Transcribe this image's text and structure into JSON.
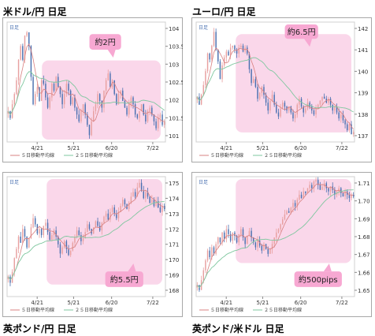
{
  "charts": [
    {
      "id": "usdjpy",
      "title": "米ドル/円 日足",
      "corner_label": "日足",
      "y_ticks": [
        "104",
        "103.5",
        "103",
        "102.5",
        "102",
        "101.5",
        "101"
      ],
      "x_ticks": [
        "4/21",
        "5/21",
        "6/20",
        "7/22"
      ],
      "legend": [
        "５日移動平均線",
        "２５日移動平均線"
      ],
      "annotation": "約2円",
      "colors": {
        "up": "#e8a0a0",
        "down": "#4a70b0",
        "ma5": "#d88080",
        "ma25": "#7fc79f",
        "highlight": "#f9d0e6",
        "callout": "#f7a8d2"
      }
    },
    {
      "id": "eurjpy",
      "title": "ユーロ/円 日足",
      "corner_label": "日足",
      "y_ticks": [
        "142",
        "141",
        "140",
        "139",
        "138",
        "137"
      ],
      "x_ticks": [
        "4/21",
        "5/21",
        "6/20",
        "7/22"
      ],
      "legend": [
        "５日移動平均線",
        "２５日移動平均線"
      ],
      "annotation": "約6.5円",
      "colors": {
        "up": "#e8a0a0",
        "down": "#4a70b0",
        "ma5": "#d88080",
        "ma25": "#7fc79f",
        "highlight": "#f9d0e6",
        "callout": "#f7a8d2"
      }
    },
    {
      "id": "gbpjpy",
      "title": "英ポンド/円 日足",
      "corner_label": "日足",
      "y_ticks": [
        "175",
        "174",
        "173",
        "172",
        "171",
        "170",
        "169",
        "168"
      ],
      "x_ticks": [
        "4/21",
        "5/21",
        "6/20",
        "7/22"
      ],
      "legend": [
        "５日移動平均線",
        "２５日移動平均線"
      ],
      "annotation": "約5.5円",
      "colors": {
        "up": "#e8a0a0",
        "down": "#4a70b0",
        "ma5": "#d88080",
        "ma25": "#7fc79f",
        "highlight": "#f9d0e6",
        "callout": "#f7a8d2"
      }
    },
    {
      "id": "gbpusd",
      "title": "英ポンド/米ドル 日足",
      "corner_label": "日足",
      "y_ticks": [
        "1.71",
        "1.70",
        "1.69",
        "1.68",
        "1.67",
        "1.66",
        "1.65"
      ],
      "x_ticks": [
        "4/21",
        "5/21",
        "6/20",
        "7/22"
      ],
      "legend": [
        "５日移動平均線",
        "２５日移動平均線"
      ],
      "annotation": "約500pips",
      "colors": {
        "up": "#e8a0a0",
        "down": "#4a70b0",
        "ma5": "#d88080",
        "ma25": "#7fc79f",
        "highlight": "#f9d0e6",
        "callout": "#f7a8d2"
      }
    }
  ],
  "chart_data": [
    {
      "type": "candlestick",
      "x_ticks": [
        "4/21",
        "5/21",
        "6/20",
        "7/22"
      ],
      "ylim": [
        100.8,
        104.3
      ],
      "close": [
        101.7,
        101.5,
        101.9,
        102.2,
        102.6,
        103.2,
        103.6,
        103.2,
        103.9,
        104.0,
        103.6,
        102.7,
        101.9,
        102.2,
        102.4,
        102.0,
        102.6,
        102.5,
        102.1,
        101.8,
        102.1,
        102.5,
        102.3,
        102.7,
        102.4,
        102.2,
        101.9,
        102.2,
        102.5,
        102.3,
        101.9,
        102.1,
        101.8,
        101.6,
        101.4,
        101.7,
        101.9,
        101.6,
        101.3,
        101.0,
        101.4,
        101.7,
        101.9,
        102.2,
        102.0,
        101.8,
        102.3,
        102.6,
        102.8,
        102.4,
        102.6,
        102.2,
        101.9,
        102.2,
        102.3,
        102.0,
        101.8,
        101.6,
        101.9,
        102.1,
        101.9,
        101.6,
        101.5,
        101.7,
        101.9,
        101.6,
        101.4,
        101.7,
        101.8,
        101.6,
        101.4,
        101.2,
        101.5,
        101.6,
        101.3,
        101.4
      ]
    },
    {
      "type": "candlestick",
      "x_ticks": [
        "4/21",
        "5/21",
        "6/20",
        "7/22"
      ],
      "ylim": [
        136.7,
        142.8
      ],
      "close": [
        139.0,
        138.6,
        139.1,
        139.6,
        140.3,
        141.2,
        140.9,
        141.6,
        142.3,
        141.4,
        140.8,
        139.9,
        140.6,
        141.0,
        141.3,
        141.1,
        141.5,
        141.6,
        141.4,
        141.2,
        141.5,
        141.6,
        141.3,
        141.5,
        141.2,
        140.4,
        139.7,
        139.9,
        139.5,
        138.9,
        139.2,
        139.5,
        139.1,
        138.7,
        138.3,
        138.8,
        139.1,
        138.6,
        138.2,
        138.0,
        138.4,
        138.7,
        138.5,
        138.3,
        138.5,
        138.2,
        137.9,
        138.1,
        138.6,
        138.9,
        138.5,
        138.2,
        138.4,
        138.7,
        138.5,
        138.3,
        138.1,
        138.4,
        138.6,
        138.8,
        139.0,
        138.9,
        138.7,
        138.9,
        138.6,
        138.3,
        138.5,
        138.2,
        137.9,
        138.1,
        137.8,
        137.6,
        137.3,
        137.6,
        137.1,
        137.2
      ]
    },
    {
      "type": "candlestick",
      "x_ticks": [
        "4/21",
        "5/21",
        "6/20",
        "7/22"
      ],
      "ylim": [
        167.7,
        175.5
      ],
      "close": [
        169.0,
        168.6,
        169.3,
        170.2,
        170.8,
        171.6,
        171.2,
        172.1,
        171.6,
        170.9,
        171.5,
        172.2,
        172.8,
        172.4,
        171.8,
        172.1,
        171.7,
        172.3,
        172.5,
        171.9,
        171.4,
        171.7,
        172.0,
        171.6,
        171.1,
        170.5,
        170.9,
        171.3,
        170.8,
        170.4,
        170.7,
        171.2,
        171.6,
        172.0,
        171.7,
        171.3,
        171.5,
        171.9,
        172.4,
        172.1,
        171.8,
        172.2,
        172.6,
        172.3,
        172.0,
        172.5,
        172.9,
        173.1,
        172.7,
        173.2,
        173.5,
        173.1,
        172.8,
        173.2,
        173.6,
        174.0,
        173.7,
        173.4,
        173.8,
        174.2,
        174.5,
        174.2,
        174.8,
        175.1,
        174.6,
        174.1,
        174.5,
        174.2,
        173.8,
        174.0,
        173.6,
        173.9,
        173.5,
        173.2,
        173.6,
        173.4
      ]
    },
    {
      "type": "candlestick",
      "x_ticks": [
        "4/21",
        "5/21",
        "6/20",
        "7/22"
      ],
      "ylim": [
        1.645,
        1.718
      ],
      "close": [
        1.652,
        1.649,
        1.655,
        1.661,
        1.667,
        1.673,
        1.669,
        1.675,
        1.671,
        1.677,
        1.681,
        1.678,
        1.684,
        1.68,
        1.686,
        1.683,
        1.679,
        1.684,
        1.682,
        1.678,
        1.683,
        1.686,
        1.681,
        1.677,
        1.682,
        1.685,
        1.681,
        1.678,
        1.675,
        1.679,
        1.676,
        1.673,
        1.677,
        1.674,
        1.671,
        1.674,
        1.677,
        1.681,
        1.684,
        1.686,
        1.689,
        1.692,
        1.695,
        1.697,
        1.696,
        1.699,
        1.702,
        1.7,
        1.704,
        1.707,
        1.705,
        1.709,
        1.708,
        1.711,
        1.713,
        1.711,
        1.715,
        1.716,
        1.713,
        1.71,
        1.712,
        1.714,
        1.711,
        1.709,
        1.712,
        1.71,
        1.707,
        1.709,
        1.711,
        1.708,
        1.706,
        1.709,
        1.707,
        1.705,
        1.707,
        1.706
      ]
    }
  ]
}
